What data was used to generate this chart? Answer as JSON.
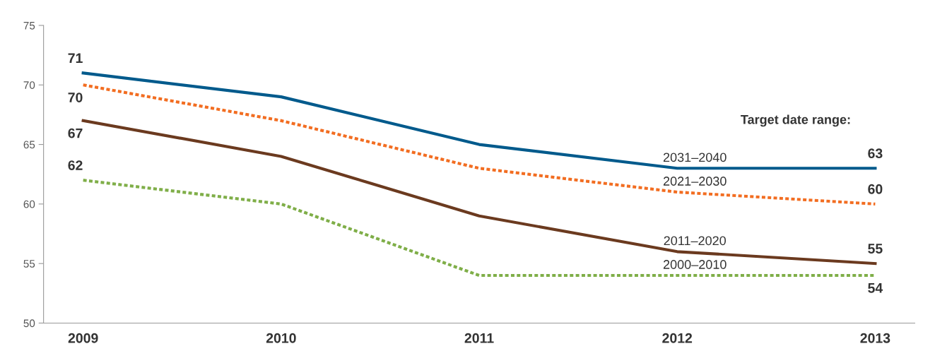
{
  "chart_data": {
    "type": "line",
    "legend_title": "Target date range:",
    "categories": [
      "2009",
      "2010",
      "2011",
      "2012",
      "2013"
    ],
    "ylim": [
      50,
      75
    ],
    "yticks": [
      50,
      55,
      60,
      65,
      70,
      75
    ],
    "grid": false,
    "legend": false,
    "marker": "none",
    "series": [
      {
        "name": "2031–2040",
        "color": "#005a8c",
        "line_style": "solid",
        "values": [
          71,
          69,
          65,
          63,
          63
        ],
        "value_labels": [
          "71",
          null,
          null,
          null,
          "63"
        ]
      },
      {
        "name": "2021–2030",
        "color": "#f26d21",
        "line_style": "dotted",
        "values": [
          70,
          67,
          63,
          61,
          60
        ],
        "value_labels": [
          "70",
          null,
          null,
          null,
          "60"
        ]
      },
      {
        "name": "2011–2020",
        "color": "#6b3a1f",
        "line_style": "solid",
        "values": [
          67,
          64,
          59,
          56,
          55
        ],
        "value_labels": [
          "67",
          null,
          null,
          null,
          "55"
        ]
      },
      {
        "name": "2000–2010",
        "color": "#7fae48",
        "line_style": "dotted",
        "values": [
          62,
          60,
          54,
          54,
          54
        ],
        "value_labels": [
          "62",
          null,
          null,
          null,
          "54"
        ]
      }
    ]
  }
}
